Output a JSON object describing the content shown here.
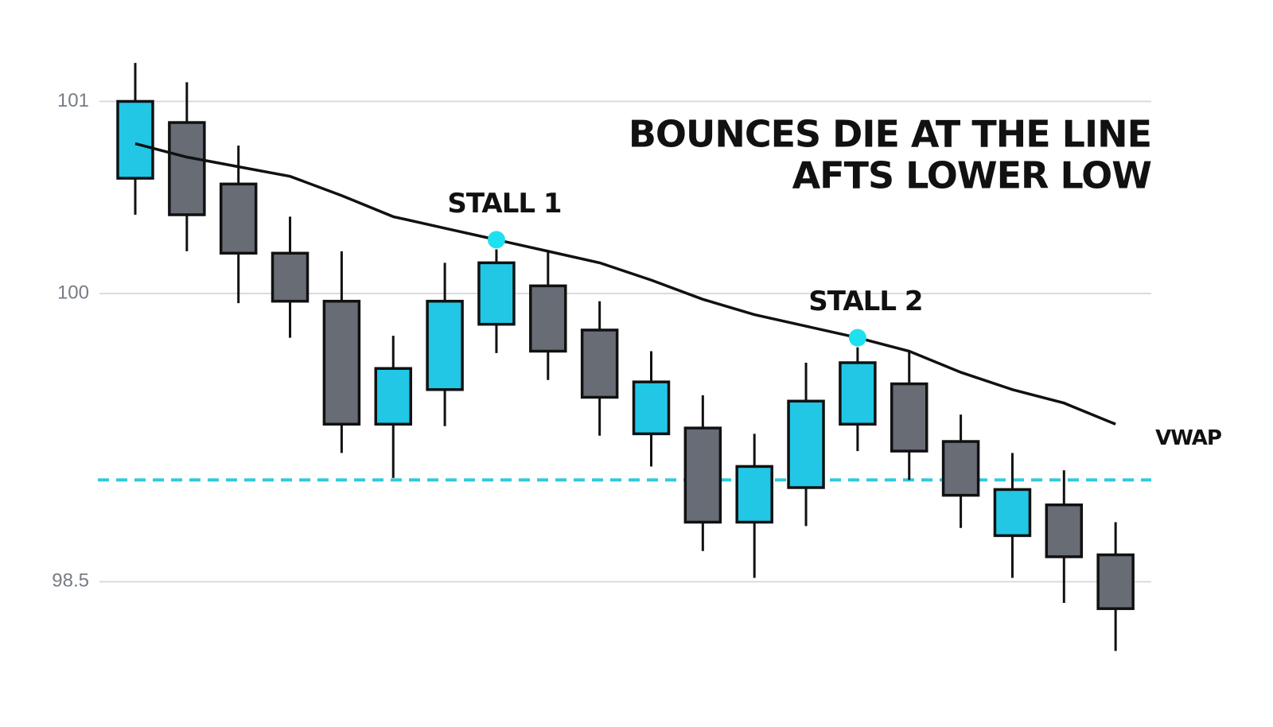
{
  "chart_data": {
    "type": "candlestick",
    "title_lines": [
      "BOUNCES DIE AT THE LINE",
      "AFTS LOWER LOW"
    ],
    "categories": [
      null,
      null,
      null,
      null,
      null,
      null,
      null,
      null,
      null,
      null,
      null,
      null,
      null,
      null,
      null,
      null,
      null,
      null,
      null,
      null
    ],
    "open": [
      100.6,
      100.89,
      100.57,
      100.21,
      99.96,
      99.32,
      99.5,
      99.84,
      100.04,
      99.81,
      99.27,
      99.3,
      98.81,
      98.99,
      99.32,
      99.53,
      99.23,
      98.74,
      98.9,
      98.64
    ],
    "high": [
      101.2,
      101.1,
      100.77,
      100.4,
      100.22,
      99.78,
      100.16,
      100.23,
      100.22,
      99.96,
      99.7,
      99.47,
      99.27,
      99.64,
      99.72,
      99.7,
      99.37,
      99.17,
      99.08,
      98.81
    ],
    "low": [
      100.41,
      100.22,
      99.95,
      99.77,
      99.17,
      99.04,
      99.31,
      99.69,
      99.55,
      99.26,
      99.1,
      98.66,
      98.52,
      98.79,
      99.18,
      99.03,
      98.78,
      98.52,
      98.39,
      98.14
    ],
    "close": [
      101.0,
      100.41,
      100.21,
      99.96,
      99.32,
      99.61,
      99.96,
      100.16,
      99.7,
      99.46,
      99.54,
      98.81,
      99.1,
      99.44,
      99.64,
      99.18,
      98.95,
      98.98,
      98.63,
      98.36
    ],
    "up_color": "#22c7e6",
    "down_color": "#676c75",
    "vwap": {
      "name": "VWAP",
      "color": "#111111",
      "values": [
        100.78,
        100.71,
        100.66,
        100.61,
        100.51,
        100.4,
        100.34,
        100.28,
        100.22,
        100.16,
        100.07,
        99.97,
        99.89,
        99.83,
        99.77,
        99.7,
        99.59,
        99.5,
        99.43,
        99.32
      ]
    },
    "annotations": [
      {
        "text": "STALL 1",
        "index": 7
      },
      {
        "text": "STALL 2",
        "index": 14
      }
    ],
    "marker_color": "#1fe0ee",
    "level": {
      "value": 99.03,
      "color": "#2ec9e0",
      "dashed": true
    },
    "ylim": [
      98.1,
      101.3
    ],
    "yticks": [
      98.5,
      100,
      101
    ],
    "grid": true
  }
}
